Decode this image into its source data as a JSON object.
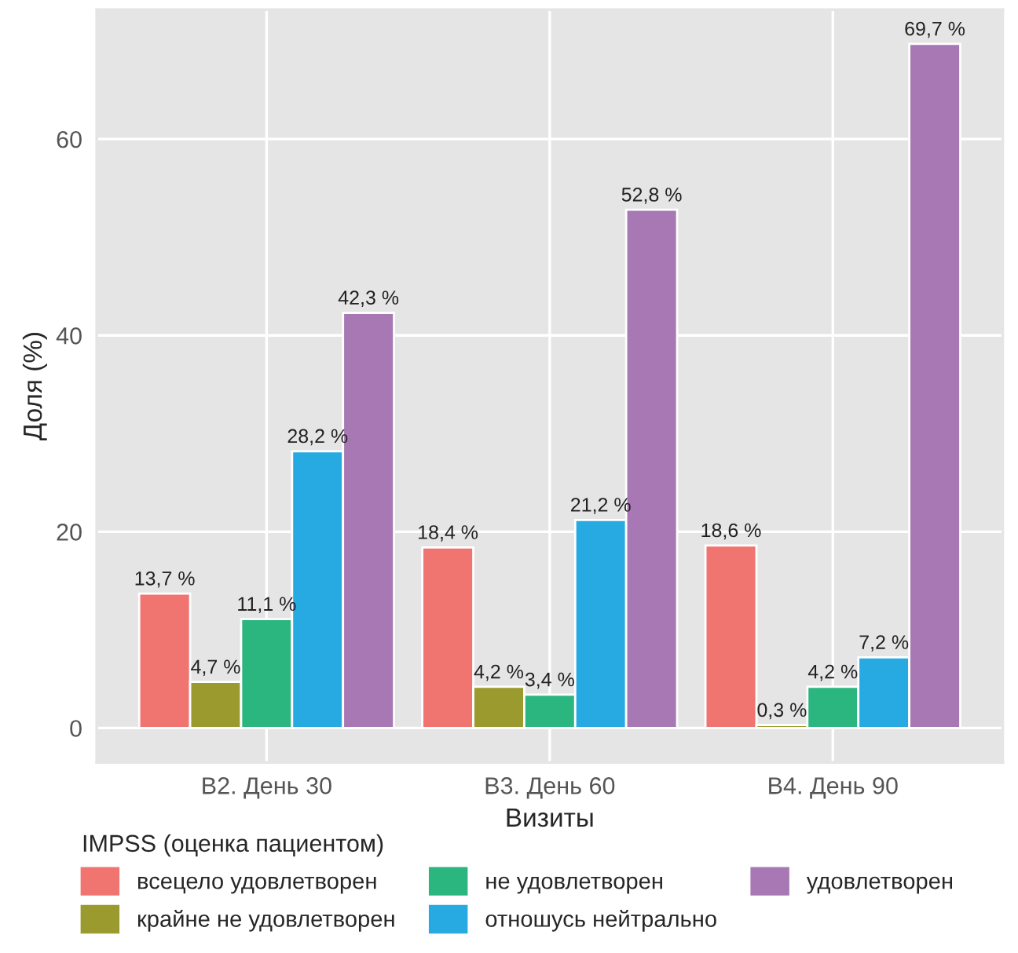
{
  "chart_data": {
    "type": "bar",
    "xlabel": "Визиты",
    "ylabel": "Доля (%)",
    "legend_title": "IMPSS (оценка пациентом)",
    "legend": "bottom",
    "grid": true,
    "categories": [
      "В2. День 30",
      "В3. День 60",
      "В4. День 90"
    ],
    "ylim": [
      -3.5,
      73.2
    ],
    "yticks": [
      0,
      20,
      40,
      60
    ],
    "series": [
      {
        "name": "всецело удовлетворен",
        "color": "#f07470",
        "values": [
          13.7,
          18.4,
          18.6
        ],
        "value_labels": [
          "13,7 %",
          "18,4 %",
          "18,6 %"
        ]
      },
      {
        "name": "крайне не удовлетворен",
        "color": "#9a9a2e",
        "values": [
          4.7,
          4.2,
          0.3
        ],
        "value_labels": [
          "4,7 %",
          "4,2 %",
          "0,3 %"
        ]
      },
      {
        "name": "не удовлетворен",
        "color": "#2cb67f",
        "values": [
          11.1,
          3.4,
          4.2
        ],
        "value_labels": [
          "11,1 %",
          "3,4 %",
          "4,2 %"
        ]
      },
      {
        "name": "отношусь нейтрально",
        "color": "#27aae1",
        "values": [
          28.2,
          21.2,
          7.2
        ],
        "value_labels": [
          "28,2 %",
          "21,2 %",
          "7,2 %"
        ]
      },
      {
        "name": "удовлетворен",
        "color": "#a878b4",
        "values": [
          42.3,
          52.8,
          69.7
        ],
        "value_labels": [
          "42,3 %",
          "52,8 %",
          "69,7 %"
        ]
      }
    ]
  }
}
